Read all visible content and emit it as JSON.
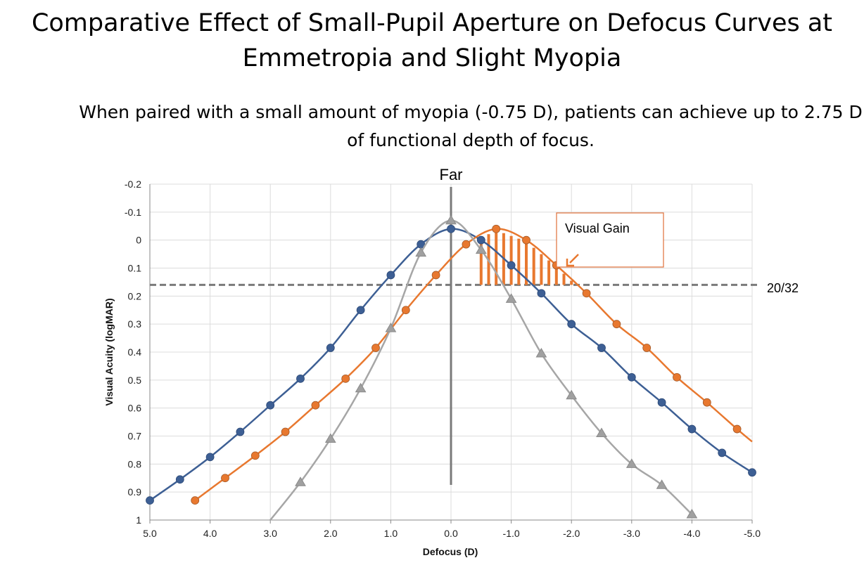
{
  "title": "Comparative Effect of Small-Pupil Aperture on Defocus Curves at Emmetropia and Slight Myopia",
  "subtitle": "When paired with a small amount of myopia (-0.75 D), patients can achieve up to 2.75 D of functional depth of focus.",
  "chart_data": {
    "type": "line",
    "xlabel": "Defocus (D)",
    "ylabel": "Visual Acuity (logMAR)",
    "xlim": [
      5.0,
      -5.0
    ],
    "ylim": [
      -0.2,
      1.0
    ],
    "y_inverted": true,
    "grid": true,
    "x_ticks": [
      "5.0",
      "4.0",
      "3.0",
      "2.0",
      "1.0",
      "0.0",
      "-1.0",
      "-2.0",
      "-3.0",
      "-4.0",
      "-5.0"
    ],
    "y_ticks": [
      "-0.2",
      "-0.1",
      "0",
      "0.1",
      "0.2",
      "0.3",
      "0.4",
      "0.5",
      "0.6",
      "0.7",
      "0.8",
      "0.9",
      "1"
    ],
    "reference_line": {
      "label": "20/32",
      "y": 0.16
    },
    "vertical_marker": {
      "label": "Far",
      "x": 0.0
    },
    "annotation": {
      "label": "Visual Gain"
    },
    "series": [
      {
        "color": "#3d5f94",
        "marker": "circle",
        "x": [
          5.0,
          4.5,
          4.0,
          3.5,
          3.0,
          2.5,
          2.0,
          1.5,
          1.0,
          0.5,
          0.0,
          -0.5,
          -1.0,
          -1.5,
          -2.0,
          -2.5,
          -3.0,
          -3.5,
          -4.0,
          -4.5,
          -5.0
        ],
        "y": [
          0.93,
          0.855,
          0.775,
          0.685,
          0.59,
          0.495,
          0.385,
          0.25,
          0.125,
          0.015,
          -0.04,
          0.0,
          0.09,
          0.19,
          0.3,
          0.385,
          0.49,
          0.58,
          0.675,
          0.76,
          0.83
        ]
      },
      {
        "color": "#e8782f",
        "marker": "circle",
        "x": [
          4.25,
          3.75,
          3.25,
          2.75,
          2.25,
          1.75,
          1.25,
          0.75,
          0.25,
          -0.25,
          -0.75,
          -1.25,
          -1.75,
          -2.25,
          -2.75,
          -3.25,
          -3.75,
          -4.25,
          -4.75
        ],
        "y": [
          0.93,
          0.85,
          0.77,
          0.685,
          0.59,
          0.495,
          0.385,
          0.25,
          0.125,
          0.015,
          -0.04,
          0.0,
          0.09,
          0.19,
          0.3,
          0.385,
          0.49,
          0.58,
          0.675
        ],
        "line_end": [
          -5.0,
          0.72
        ]
      },
      {
        "color": "#a6a6a6",
        "marker": "triangle",
        "x": [
          2.5,
          2.0,
          1.5,
          1.0,
          0.5,
          0.0,
          -0.5,
          -1.0,
          -1.5,
          -2.0,
          -2.5,
          -3.0,
          -3.5,
          -4.0
        ],
        "y": [
          0.865,
          0.71,
          0.53,
          0.315,
          0.045,
          -0.07,
          0.035,
          0.21,
          0.405,
          0.555,
          0.69,
          0.8,
          0.875,
          0.98
        ],
        "line_start": [
          3.0,
          1.0
        ]
      }
    ]
  }
}
